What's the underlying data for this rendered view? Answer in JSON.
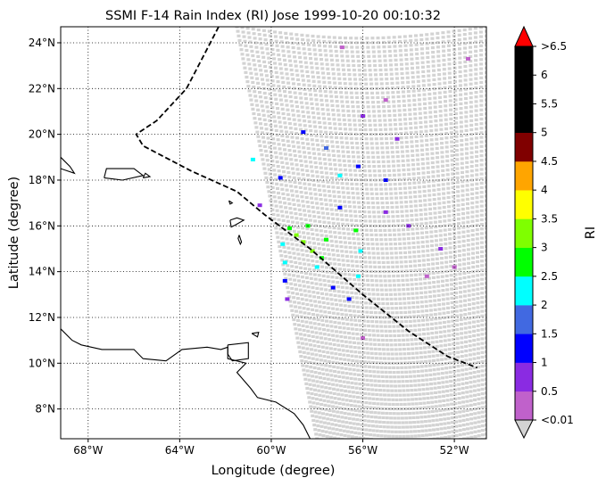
{
  "chart_data": {
    "type": "scatter",
    "title": "SSMI F-14 Rain Index (RI) Jose 1999-10-20 00:10:32",
    "xlabel": "Longitude (degree)",
    "ylabel": "Latitude (degree)",
    "xlim": [
      -69.2,
      -50.6
    ],
    "ylim": [
      6.7,
      24.7
    ],
    "x_ticks": [
      {
        "value": -68,
        "label": "68°W"
      },
      {
        "value": -64,
        "label": "64°W"
      },
      {
        "value": -60,
        "label": "60°W"
      },
      {
        "value": -56,
        "label": "56°W"
      },
      {
        "value": -52,
        "label": "52°W"
      }
    ],
    "y_ticks": [
      {
        "value": 8,
        "label": "8°N"
      },
      {
        "value": 10,
        "label": "10°N"
      },
      {
        "value": 12,
        "label": "12°N"
      },
      {
        "value": 14,
        "label": "14°N"
      },
      {
        "value": 16,
        "label": "16°N"
      },
      {
        "value": 18,
        "label": "18°N"
      },
      {
        "value": 20,
        "label": "20°N"
      },
      {
        "value": 22,
        "label": "22°N"
      },
      {
        "value": 24,
        "label": "24°N"
      }
    ],
    "grid": true,
    "colorbar": {
      "label": "RI",
      "extend": "both",
      "under_color": "#d3d3d3",
      "over_color": "#ff0000",
      "bins": [
        {
          "color": "#c061cb"
        },
        {
          "color": "#8a2be2"
        },
        {
          "color": "#0000ff"
        },
        {
          "color": "#4169e1"
        },
        {
          "color": "#00ffff"
        },
        {
          "color": "#00ff00"
        },
        {
          "color": "#7fff00"
        },
        {
          "color": "#ffff00"
        },
        {
          "color": "#ffa500"
        },
        {
          "color": "#800000"
        },
        {
          "color": "#000000"
        },
        {
          "color": "#000000"
        },
        {
          "color": "#000000"
        }
      ],
      "tick_labels": [
        "<0.01",
        "0.5",
        "1",
        "1.5",
        "2",
        "2.5",
        "3",
        "3.5",
        "4",
        "4.5",
        "5",
        "5.5",
        "6",
        ">6.5"
      ]
    },
    "swath": {
      "corners": [
        [
          -61.5,
          24.7
        ],
        [
          -50.6,
          24.7
        ],
        [
          -50.6,
          6.7
        ],
        [
          -58.0,
          6.7
        ]
      ],
      "background_ri": "<0.01"
    },
    "rain_cells": [
      {
        "lon": -58.6,
        "lat": 15.3,
        "ri": 3.2
      },
      {
        "lon": -58.9,
        "lat": 15.6,
        "ri": 3.1
      },
      {
        "lon": -58.2,
        "lat": 14.9,
        "ri": 3.0
      },
      {
        "lon": -57.8,
        "lat": 14.6,
        "ri": 2.8
      },
      {
        "lon": -59.2,
        "lat": 15.9,
        "ri": 2.7
      },
      {
        "lon": -58.4,
        "lat": 16.0,
        "ri": 2.6
      },
      {
        "lon": -57.6,
        "lat": 15.4,
        "ri": 2.5
      },
      {
        "lon": -59.5,
        "lat": 15.2,
        "ri": 2.4
      },
      {
        "lon": -58.0,
        "lat": 14.2,
        "ri": 2.3
      },
      {
        "lon": -59.4,
        "lat": 14.4,
        "ri": 2.2
      },
      {
        "lon": -56.3,
        "lat": 15.8,
        "ri": 2.6
      },
      {
        "lon": -56.1,
        "lat": 14.9,
        "ri": 2.4
      },
      {
        "lon": -56.2,
        "lat": 13.8,
        "ri": 2.1
      },
      {
        "lon": -57.0,
        "lat": 18.2,
        "ri": 2.3
      },
      {
        "lon": -60.8,
        "lat": 18.9,
        "ri": 2.0
      },
      {
        "lon": -57.6,
        "lat": 19.4,
        "ri": 1.5
      },
      {
        "lon": -56.2,
        "lat": 18.6,
        "ri": 1.4
      },
      {
        "lon": -55.0,
        "lat": 18.0,
        "ri": 1.3
      },
      {
        "lon": -58.6,
        "lat": 20.1,
        "ri": 1.2
      },
      {
        "lon": -59.6,
        "lat": 18.1,
        "ri": 1.1
      },
      {
        "lon": -57.3,
        "lat": 13.3,
        "ri": 1.4
      },
      {
        "lon": -59.4,
        "lat": 13.6,
        "ri": 1.2
      },
      {
        "lon": -56.6,
        "lat": 12.8,
        "ri": 1.3
      },
      {
        "lon": -57.0,
        "lat": 16.8,
        "ri": 1.2
      },
      {
        "lon": -55.0,
        "lat": 16.6,
        "ri": 0.8
      },
      {
        "lon": -54.0,
        "lat": 16.0,
        "ri": 0.6
      },
      {
        "lon": -56.0,
        "lat": 20.8,
        "ri": 0.6
      },
      {
        "lon": -55.0,
        "lat": 21.5,
        "ri": 0.4
      },
      {
        "lon": -53.2,
        "lat": 13.8,
        "ri": 0.4
      },
      {
        "lon": -52.0,
        "lat": 14.2,
        "ri": 0.4
      },
      {
        "lon": -56.9,
        "lat": 23.8,
        "ri": 0.4
      },
      {
        "lon": -51.4,
        "lat": 23.3,
        "ri": 0.3
      },
      {
        "lon": -52.6,
        "lat": 15.0,
        "ri": 0.5
      },
      {
        "lon": -60.5,
        "lat": 16.9,
        "ri": 0.8
      },
      {
        "lon": -59.3,
        "lat": 12.8,
        "ri": 0.6
      },
      {
        "lon": -56.0,
        "lat": 11.1,
        "ri": 0.3
      },
      {
        "lon": -54.5,
        "lat": 19.8,
        "ri": 0.5
      }
    ],
    "storm_track": [
      [
        -62.3,
        24.7
      ],
      [
        -63.7,
        22.0
      ],
      [
        -65.0,
        20.6
      ],
      [
        -65.9,
        20.0
      ],
      [
        -65.6,
        19.5
      ],
      [
        -63.5,
        18.4
      ],
      [
        -61.5,
        17.5
      ],
      [
        -60.3,
        16.5
      ],
      [
        -58.3,
        15.0
      ],
      [
        -56.0,
        13.0
      ],
      [
        -54.0,
        11.4
      ],
      [
        -52.3,
        10.3
      ],
      [
        -51.0,
        9.8
      ]
    ],
    "coastlines": [
      [
        [
          -69.2,
          19.0
        ],
        [
          -68.8,
          18.6
        ],
        [
          -68.6,
          18.3
        ],
        [
          -69.2,
          18.5
        ]
      ],
      [
        [
          -67.3,
          18.1
        ],
        [
          -67.2,
          18.5
        ],
        [
          -66.0,
          18.5
        ],
        [
          -65.6,
          18.2
        ],
        [
          -66.5,
          18.0
        ],
        [
          -67.3,
          18.1
        ]
      ],
      [
        [
          -65.6,
          18.1
        ],
        [
          -65.3,
          18.15
        ],
        [
          -65.5,
          18.3
        ],
        [
          -65.6,
          18.1
        ]
      ],
      [
        [
          -61.85,
          17.1
        ],
        [
          -61.7,
          17.0
        ],
        [
          -61.8,
          16.95
        ],
        [
          -61.85,
          17.1
        ]
      ],
      [
        [
          -61.8,
          16.25
        ],
        [
          -61.5,
          16.35
        ],
        [
          -61.2,
          16.25
        ],
        [
          -61.55,
          16.05
        ],
        [
          -61.75,
          15.95
        ],
        [
          -61.8,
          16.25
        ]
      ],
      [
        [
          -61.4,
          15.6
        ],
        [
          -61.3,
          15.3
        ],
        [
          -61.35,
          15.2
        ],
        [
          -61.45,
          15.45
        ],
        [
          -61.4,
          15.6
        ]
      ],
      [
        [
          -69.2,
          11.5
        ],
        [
          -68.7,
          11.0
        ],
        [
          -68.3,
          10.8
        ],
        [
          -67.4,
          10.6
        ],
        [
          -66.0,
          10.6
        ],
        [
          -65.6,
          10.2
        ],
        [
          -64.6,
          10.1
        ],
        [
          -63.9,
          10.6
        ],
        [
          -62.8,
          10.7
        ],
        [
          -62.2,
          10.6
        ],
        [
          -61.9,
          10.7
        ],
        [
          -61.9,
          10.2
        ],
        [
          -61.1,
          10.0
        ],
        [
          -61.5,
          9.6
        ],
        [
          -60.9,
          8.9
        ],
        [
          -60.6,
          8.5
        ],
        [
          -59.8,
          8.3
        ],
        [
          -59.0,
          7.8
        ],
        [
          -58.6,
          7.3
        ],
        [
          -58.3,
          6.7
        ]
      ],
      [
        [
          -61.9,
          10.8
        ],
        [
          -61.0,
          10.9
        ],
        [
          -61.0,
          10.2
        ],
        [
          -61.7,
          10.1
        ],
        [
          -61.9,
          10.4
        ],
        [
          -61.9,
          10.8
        ]
      ],
      [
        [
          -60.85,
          11.3
        ],
        [
          -60.55,
          11.35
        ],
        [
          -60.6,
          11.15
        ],
        [
          -60.85,
          11.3
        ]
      ]
    ]
  }
}
